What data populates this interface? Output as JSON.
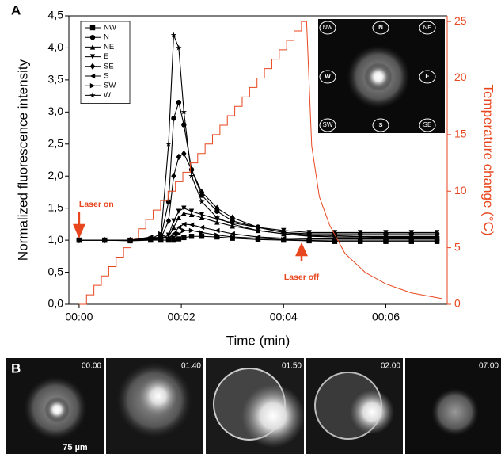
{
  "chart_data": {
    "type": "line",
    "panel_label": "A",
    "x_label": "Time (min)",
    "y_label": "Normalized fluorescence intensity",
    "y2_label": "Temperature change (°C)",
    "xlim": [
      -0.2,
      7.2
    ],
    "ylim": [
      0,
      4.5
    ],
    "y2lim": [
      0,
      25.5
    ],
    "xticks": [
      {
        "value": 0,
        "label": "00:00"
      },
      {
        "value": 2,
        "label": "00:02"
      },
      {
        "value": 4,
        "label": "00:04"
      },
      {
        "value": 6,
        "label": "00:06"
      }
    ],
    "yticks": [
      {
        "value": 0,
        "label": "0,0"
      },
      {
        "value": 0.5,
        "label": "0,5"
      },
      {
        "value": 1,
        "label": "1,0"
      },
      {
        "value": 1.5,
        "label": "1,5"
      },
      {
        "value": 2,
        "label": "2,0"
      },
      {
        "value": 2.5,
        "label": "2,5"
      },
      {
        "value": 3,
        "label": "3,0"
      },
      {
        "value": 3.5,
        "label": "3,5"
      },
      {
        "value": 4,
        "label": "4,0"
      },
      {
        "value": 4.5,
        "label": "4,5"
      }
    ],
    "y2ticks": [
      0,
      5,
      10,
      15,
      20,
      25
    ],
    "y2_color": "#e8461e",
    "annotations": [
      "Laser on",
      "Laser off"
    ],
    "legend": "upper left",
    "x": [
      0,
      0.5,
      1,
      1.4,
      1.6,
      1.75,
      1.85,
      1.95,
      2.05,
      2.2,
      2.4,
      2.7,
      3,
      3.5,
      4,
      4.5,
      5,
      5.5,
      6,
      6.5,
      7
    ],
    "series": [
      {
        "name": "NW",
        "color": "#000000",
        "marker": "square",
        "values": [
          1,
          1,
          0.99,
          1,
          1,
          1,
          1,
          1.02,
          1.04,
          1.06,
          1.06,
          1.05,
          1.03,
          1.01,
          1.0,
          0.99,
          0.98,
          0.98,
          0.98,
          0.98,
          0.98
        ]
      },
      {
        "name": "N",
        "color": "#000000",
        "marker": "circle",
        "values": [
          1,
          1,
          1,
          1.03,
          1.05,
          1.6,
          2.9,
          3.15,
          2.8,
          2.1,
          1.7,
          1.45,
          1.3,
          1.2,
          1.12,
          1.1,
          1.1,
          1.1,
          1.1,
          1.1,
          1.1
        ]
      },
      {
        "name": "NE",
        "color": "#000000",
        "marker": "triangle-up",
        "values": [
          1,
          1,
          1,
          1.01,
          1.02,
          1.05,
          1.2,
          1.35,
          1.42,
          1.4,
          1.35,
          1.28,
          1.22,
          1.15,
          1.1,
          1.06,
          1.05,
          1.05,
          1.05,
          1.05,
          1.05
        ]
      },
      {
        "name": "E",
        "color": "#000000",
        "marker": "triangle-down",
        "values": [
          1,
          1,
          1,
          1.01,
          1.02,
          1.08,
          1.3,
          1.45,
          1.5,
          1.45,
          1.4,
          1.33,
          1.27,
          1.2,
          1.15,
          1.12,
          1.12,
          1.12,
          1.12,
          1.12,
          1.12
        ]
      },
      {
        "name": "SE",
        "color": "#000000",
        "marker": "diamond",
        "values": [
          1,
          1,
          1,
          1.02,
          1.03,
          1.3,
          2.0,
          2.3,
          2.35,
          2.1,
          1.75,
          1.5,
          1.35,
          1.2,
          1.12,
          1.08,
          1.07,
          1.06,
          1.06,
          1.06,
          1.06
        ]
      },
      {
        "name": "S",
        "color": "#000000",
        "marker": "triangle-left",
        "values": [
          1,
          1,
          1,
          1.05,
          1.03,
          1.03,
          1.1,
          1.2,
          1.25,
          1.24,
          1.2,
          1.15,
          1.1,
          1.05,
          1.03,
          1.02,
          1.02,
          1.02,
          1.02,
          1.02,
          1.02
        ]
      },
      {
        "name": "SW",
        "color": "#000000",
        "marker": "triangle-right",
        "values": [
          1,
          1,
          1,
          1.02,
          1.1,
          1.02,
          1.05,
          1.1,
          1.15,
          1.15,
          1.12,
          1.08,
          1.05,
          1.03,
          1.01,
          1.0,
          1.0,
          1.0,
          1.0,
          1.0,
          1.0
        ]
      },
      {
        "name": "W",
        "color": "#000000",
        "marker": "star",
        "values": [
          1,
          1,
          1,
          1.02,
          1.05,
          2.5,
          4.2,
          4.0,
          3.0,
          2.0,
          1.6,
          1.35,
          1.25,
          1.15,
          1.1,
          1.07,
          1.05,
          1.05,
          1.04,
          1.04,
          1.04
        ]
      },
      {
        "color": "#e8461e",
        "axis": "y2",
        "x": [
          0,
          0.145,
          0.145,
          0.29,
          0.29,
          0.435,
          0.435,
          0.58,
          0.58,
          0.725,
          0.725,
          0.87,
          0.87,
          1.015,
          1.015,
          1.16,
          1.16,
          1.305,
          1.305,
          1.45,
          1.45,
          1.595,
          1.595,
          1.74,
          1.74,
          1.885,
          1.885,
          2.03,
          2.03,
          2.175,
          2.175,
          2.32,
          2.32,
          2.465,
          2.465,
          2.61,
          2.61,
          2.755,
          2.755,
          2.9,
          2.9,
          3.045,
          3.045,
          3.19,
          3.19,
          3.335,
          3.335,
          3.48,
          3.48,
          3.625,
          3.625,
          3.77,
          3.77,
          3.915,
          3.915,
          4.06,
          4.06,
          4.205,
          4.205,
          4.35,
          4.35,
          4.45,
          4.55,
          4.7,
          4.9,
          5.2,
          5.6,
          6,
          6.5,
          7.1
        ],
        "values": [
          0,
          0,
          0.83,
          0.83,
          1.67,
          1.67,
          2.5,
          2.5,
          3.33,
          3.33,
          4.17,
          4.17,
          5,
          5,
          5.83,
          5.83,
          6.67,
          6.67,
          7.5,
          7.5,
          8.33,
          8.33,
          9.17,
          9.17,
          10,
          10,
          10.83,
          10.83,
          11.67,
          11.67,
          12.5,
          12.5,
          13.33,
          13.33,
          14.17,
          14.17,
          15,
          15,
          15.83,
          15.83,
          16.67,
          16.67,
          17.5,
          17.5,
          18.33,
          18.33,
          19.17,
          19.17,
          20,
          20,
          20.83,
          20.83,
          21.67,
          21.67,
          22.5,
          22.5,
          23.33,
          23.33,
          24.17,
          24.17,
          25,
          25,
          14,
          9.5,
          7,
          4.5,
          2.8,
          1.8,
          1.0,
          0.5
        ]
      }
    ]
  },
  "inset": {
    "labels": [
      "NW",
      "N",
      "NE",
      "W",
      "E",
      "SW",
      "S",
      "SE"
    ]
  },
  "panel_b": {
    "label": "B",
    "frames": [
      "00:00",
      "01:40",
      "01:50",
      "02:00",
      "07:00"
    ],
    "scale_bar": "75 µm"
  }
}
